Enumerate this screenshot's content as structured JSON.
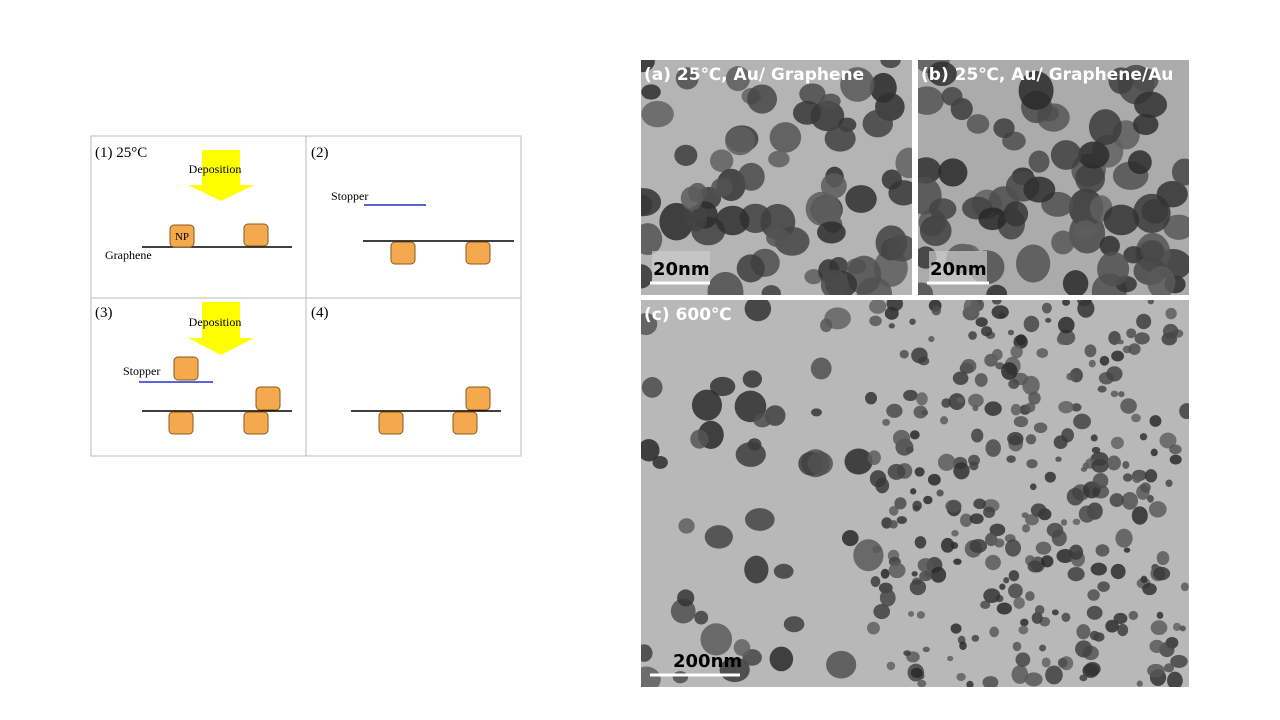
{
  "diagram": {
    "panels": [
      {
        "label": "(1)  25°C",
        "deposition": "Deposition",
        "np": "NP",
        "graphene": "Graphene"
      },
      {
        "label": "(2)",
        "stopper": "Stopper"
      },
      {
        "label": "(3)",
        "deposition": "Deposition",
        "stopper": "Stopper"
      },
      {
        "label": "(4)"
      }
    ]
  },
  "images": [
    {
      "caption": "(a) 25℃, Au/ Graphene",
      "scale": "20nm"
    },
    {
      "caption": "(b) 25℃, Au/ Graphene/Au",
      "scale": "20nm"
    },
    {
      "caption": "(c) 600℃",
      "scale": "200nm"
    }
  ]
}
